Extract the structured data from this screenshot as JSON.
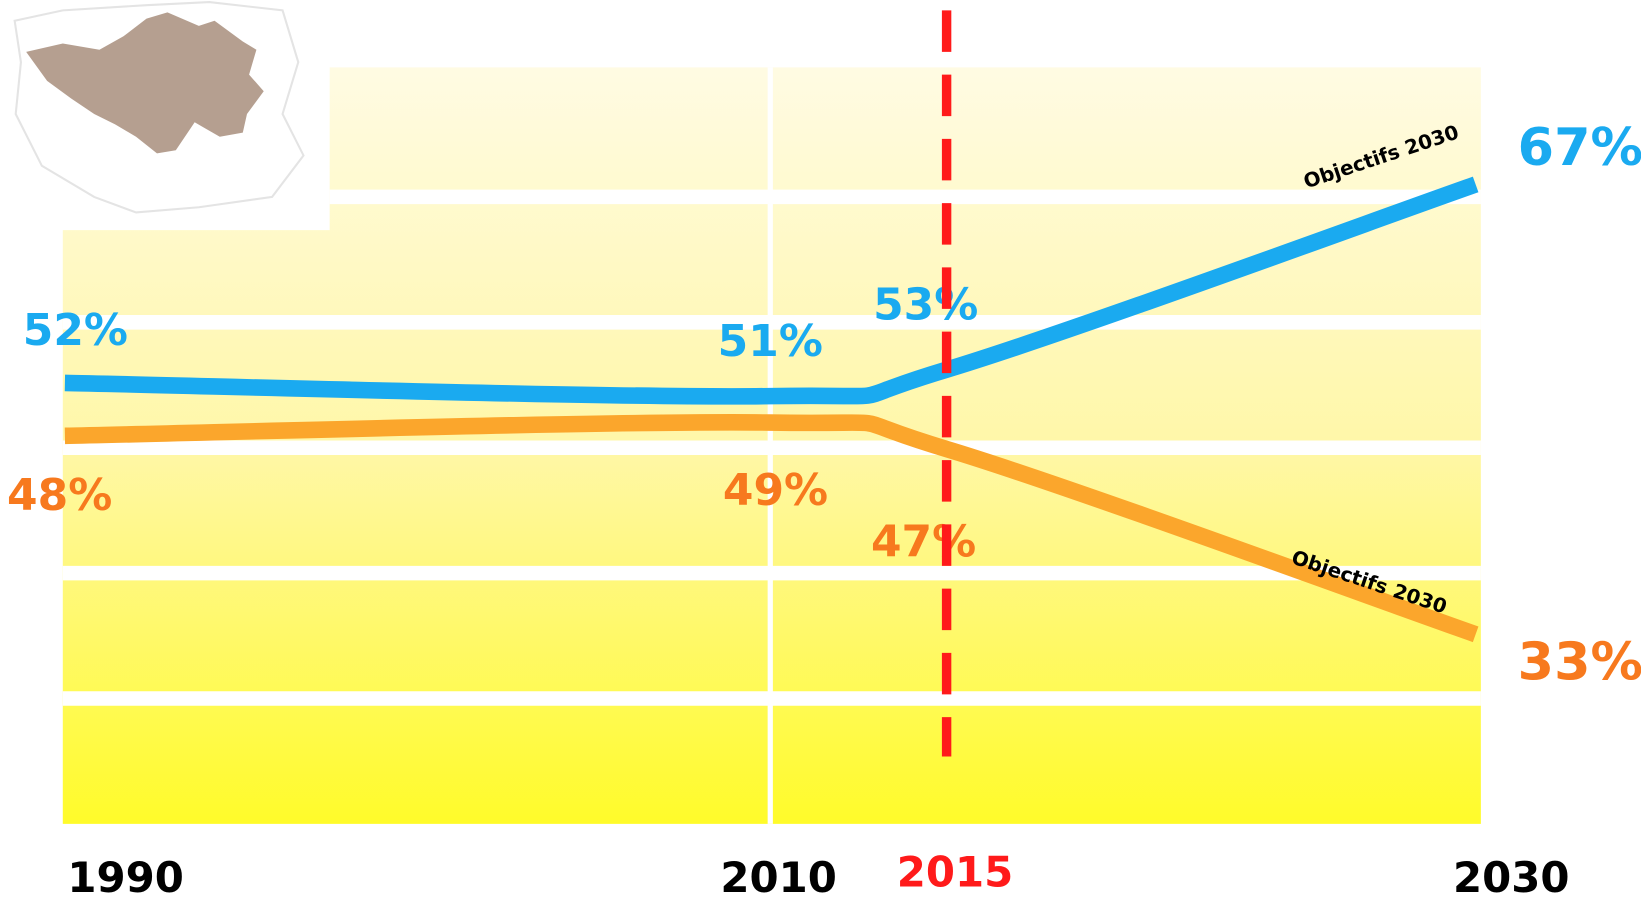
{
  "chart_data": {
    "type": "line",
    "x": [
      1990,
      2010,
      2015,
      2030
    ],
    "xlim": [
      1990,
      2030
    ],
    "xticks": [
      1990,
      2010,
      2015,
      2030
    ],
    "reference_line": {
      "x": 2015,
      "color": "#ff1a1a"
    },
    "series": [
      {
        "name": null,
        "color": "#1aaaf0",
        "label_color": "#1aaaf0",
        "values": [
          52,
          51,
          53,
          67
        ],
        "value_labels": [
          "52%",
          "51%",
          "53%",
          "67%"
        ],
        "annotation": "Objectifs 2030"
      },
      {
        "name": null,
        "color": "#fba62c",
        "label_color": "#f7791e",
        "values": [
          48,
          49,
          47,
          33
        ],
        "value_labels": [
          "48%",
          "49%",
          "47%",
          "33%"
        ],
        "annotation": "Objectifs 2030"
      }
    ]
  }
}
